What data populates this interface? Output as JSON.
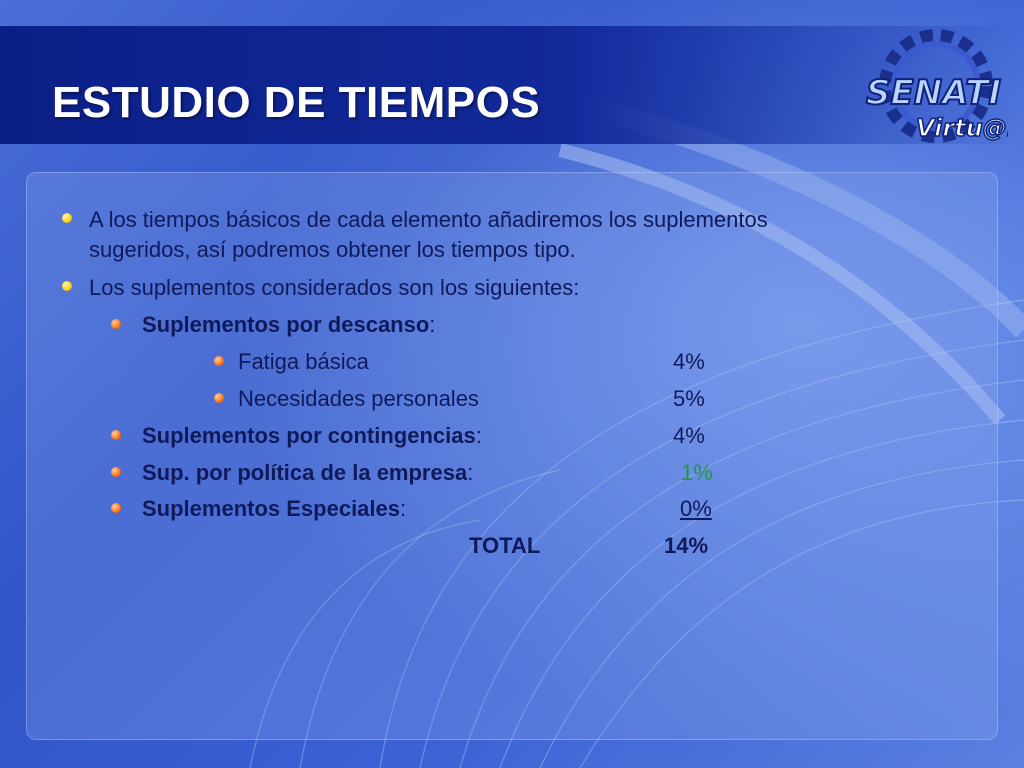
{
  "slide": {
    "title": "ESTUDIO DE TIEMPOS",
    "logo": {
      "top_text": "SENATI",
      "bottom_text": "Virtu@l"
    }
  },
  "content": {
    "bullet1_line1": "A los tiempos básicos de cada elemento añadiremos los suplementos",
    "bullet1_line2": "sugeridos, así podremos obtener los tiempos tipo.",
    "bullet2": "Los suplementos considerados son los siguientes:",
    "descanso_label": "Suplementos por descanso",
    "colon": ":",
    "fatiga_label": "Fatiga básica",
    "fatiga_value": "4%",
    "necesidades_label": "Necesidades personales",
    "necesidades_value": "5%",
    "contingencias_label": "Suplementos por contingencias",
    "contingencias_value": "4%",
    "politica_label": "Sup. por política de la empresa",
    "politica_value": "1%",
    "especiales_label": "Suplementos Especiales",
    "especiales_value": "0%",
    "total_label": "TOTAL",
    "total_value": "14%"
  },
  "colors": {
    "title_band": "#0b1f86",
    "text": "#101a5a",
    "bullet_level1": "#ffd21a",
    "bullet_level2": "#ff7a1a",
    "highlight_value": "#1f9a3a"
  }
}
